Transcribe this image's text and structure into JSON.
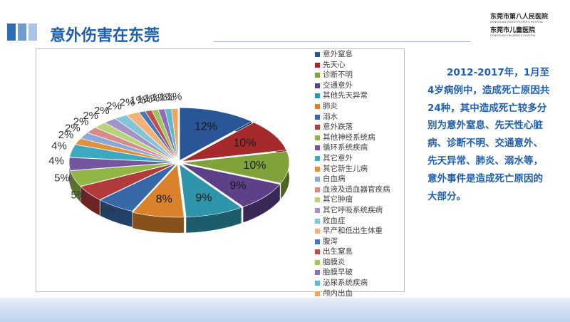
{
  "slide": {
    "title": "意外伤害在东莞",
    "logo": {
      "line1_cn": "东莞市第八人民医院",
      "line1_en": "DONGGUAN EIGHTH PEOPLE'S HOSPITAL",
      "line2_cn": "东莞市儿童医院",
      "line2_en": "DONGGUAN CHILDREN'S HOSPITAL"
    },
    "summary_text": "2012-2017年，1月至4岁病例中，造成死亡原因共24种，其中造成死亡较多分别为意外窒息、先天性心脏病、诊断不明、交通意外、先天异常、肺炎、溺水等，意外事件是造成死亡原因的大部分。"
  },
  "chart_data": {
    "type": "pie",
    "style": "3d-exploded",
    "legend_placement": "right",
    "categories": [
      "意外窒息",
      "先天心",
      "诊断不明",
      "交通意外",
      "其他先天异常",
      "肺炎",
      "溺水",
      "意外跌落",
      "其他神经系统病",
      "循环系统疾病",
      "其它意外",
      "其它新生儿病",
      "白血病",
      "血液及造血器官疾病",
      "其它肿瘤",
      "其它呼吸系统疾病",
      "败血症",
      "早产和低出生体重",
      "腹泻",
      "出生窒息",
      "脑膜炎",
      "胎膜早破",
      "泌尿系统疾病",
      "颅内出血"
    ],
    "values": [
      12,
      10,
      10,
      9,
      9,
      8,
      6,
      5,
      5,
      4,
      4,
      2,
      2,
      2,
      2,
      2,
      2,
      2,
      1,
      1,
      1,
      1,
      1,
      1
    ],
    "data_labels": [
      "12%",
      "10%",
      "10%",
      "9%",
      "9%",
      "8%",
      "6%",
      "5%",
      "5%",
      "4%",
      "4%",
      "2%",
      "2%",
      "2%",
      "2%",
      "2%",
      "2%",
      "2%",
      "1%",
      "1%",
      "1%",
      "1%",
      "1%",
      "1%"
    ],
    "colors": [
      "#2a5597",
      "#a62a2b",
      "#7fa33a",
      "#5c4189",
      "#2e95ab",
      "#d9822b",
      "#3867a8",
      "#b13a3a",
      "#91b646",
      "#73569e",
      "#3ea8c0",
      "#e0913d",
      "#8aa8d8",
      "#d88a8a",
      "#b7d47a",
      "#a593c7",
      "#81c6d8",
      "#f0b27a",
      "#4a76b8",
      "#c04e4e",
      "#a3c45c",
      "#8a6fb5",
      "#5fb8cc",
      "#f2a35a"
    ]
  }
}
